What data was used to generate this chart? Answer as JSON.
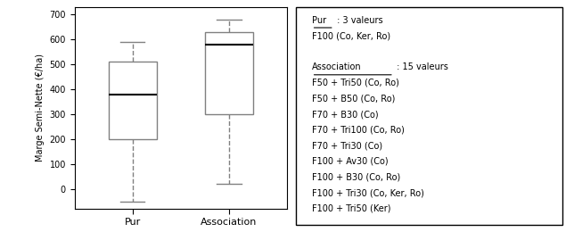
{
  "box1": {
    "whislo": -50,
    "q1": 200,
    "med": 380,
    "q3": 510,
    "whishi": 590
  },
  "box2": {
    "whislo": 20,
    "q1": 300,
    "med": 578,
    "q3": 630,
    "whishi": 680
  },
  "ylabel": "Marge Semi-Nette (€/ha)",
  "ylim": [
    -80,
    730
  ],
  "yticks": [
    0,
    100,
    200,
    300,
    400,
    500,
    600,
    700
  ],
  "xtick_labels": [
    "Pur",
    "Association"
  ],
  "box_facecolor": "white",
  "box_edge_color": "#808080",
  "median_color": "black",
  "whisker_color": "#808080",
  "cap_color": "#808080",
  "legend_lines": [
    "Pur : 3 valeurs",
    "F100 (Co, Ker, Ro)",
    "",
    "Association : 15 valeurs",
    "F50 + Tri50 (Co, Ro)",
    "F50 + B50 (Co, Ro)",
    "F70 + B30 (Co)",
    "F70 + Tri100 (Co, Ro)",
    "F70 + Tri30 (Co)",
    "F100 + Av30 (Co)",
    "F100 + B30 (Co, Ro)",
    "F100 + Tri30 (Co, Ker, Ro)",
    "F100 + Tri50 (Ker)"
  ],
  "underline_indices": [
    0,
    3
  ]
}
